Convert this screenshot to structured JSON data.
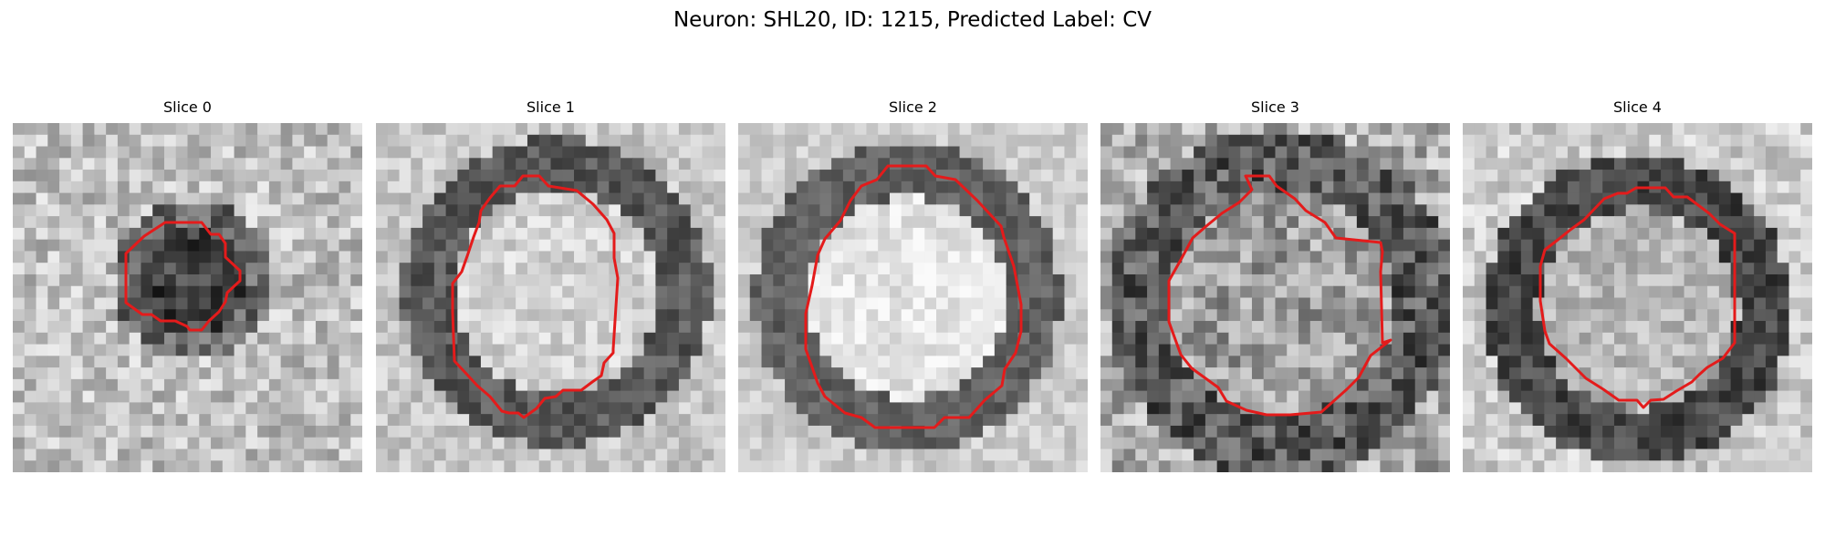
{
  "figure": {
    "title": "Neuron: SHL20, ID: 1215, Predicted Label: CV"
  },
  "colors": {
    "background": "#ffffff",
    "contour": "#e41b1b",
    "image_colormap": "grayscale"
  },
  "panels": [
    {
      "title": "Slice 0",
      "image_description_icon": "grayscale-microscopy-slice",
      "contour_color": "#e41b1b"
    },
    {
      "title": "Slice 1",
      "image_description_icon": "grayscale-microscopy-slice",
      "contour_color": "#e41b1b"
    },
    {
      "title": "Slice 2",
      "image_description_icon": "grayscale-microscopy-slice",
      "contour_color": "#e41b1b"
    },
    {
      "title": "Slice 3",
      "image_description_icon": "grayscale-microscopy-slice",
      "contour_color": "#e41b1b"
    },
    {
      "title": "Slice 4",
      "image_description_icon": "grayscale-microscopy-slice",
      "contour_color": "#e41b1b"
    }
  ]
}
